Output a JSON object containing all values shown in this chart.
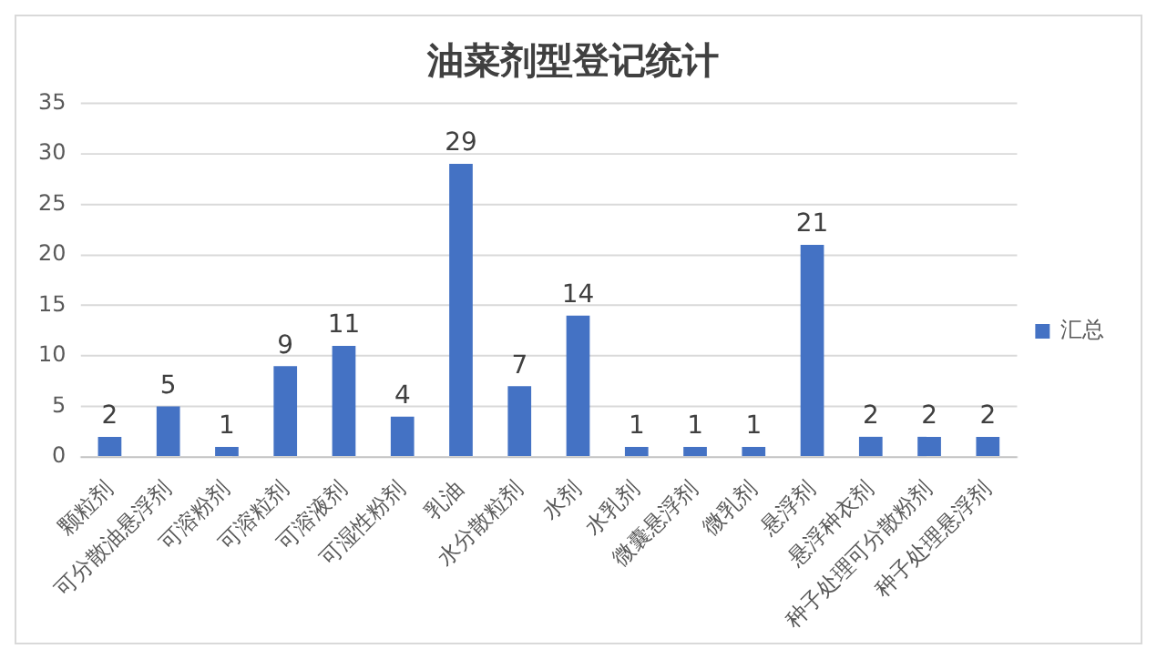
{
  "chart_data": {
    "type": "bar",
    "title": "油菜剂型登记统计",
    "categories": [
      "颗粒剂",
      "可分散油悬浮剂",
      "可溶粉剂",
      "可溶粒剂",
      "可溶液剂",
      "可湿性粉剂",
      "乳油",
      "水分散粒剂",
      "水剂",
      "水乳剂",
      "微囊悬浮剂",
      "微乳剂",
      "悬浮剂",
      "悬浮种衣剂",
      "种子处理可分散粉剂",
      "种子处理悬浮剂"
    ],
    "series": [
      {
        "name": "汇总",
        "color": "#4472c4",
        "values": [
          2,
          5,
          1,
          9,
          11,
          4,
          29,
          7,
          14,
          1,
          1,
          1,
          21,
          2,
          2,
          2
        ]
      }
    ],
    "ylim": [
      0,
      35
    ],
    "yticks": [
      0,
      5,
      10,
      15,
      20,
      25,
      30,
      35
    ],
    "grid": "y",
    "legend": "right",
    "data_labels": true
  }
}
